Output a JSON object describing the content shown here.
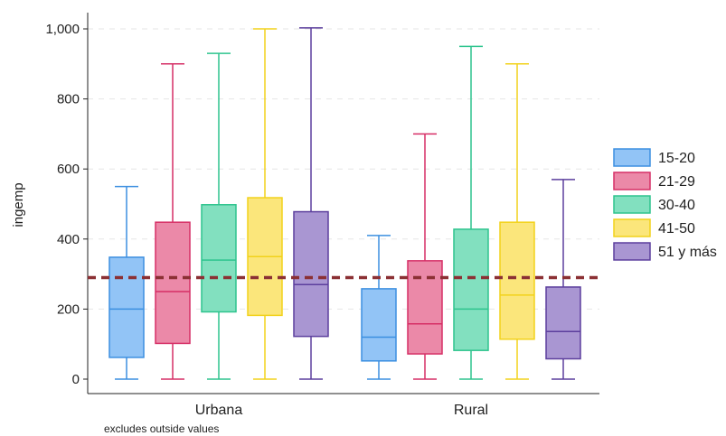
{
  "chart_data": {
    "type": "boxplot",
    "title": "",
    "xlabel": "",
    "ylabel": "ingemp",
    "ylim": [
      0,
      1000
    ],
    "yticks": [
      0,
      200,
      400,
      600,
      800,
      1000
    ],
    "ytick_labels": [
      "0",
      "200",
      "400",
      "600",
      "800",
      "1,000"
    ],
    "grid": true,
    "legend_position": "right",
    "note": "excludes outside values",
    "reference_line": {
      "value": 290,
      "style": "dashed",
      "color": "#8b3034"
    },
    "categories": [
      "Urbana",
      "Rural"
    ],
    "series": [
      {
        "name": "15-20",
        "stroke": "#3c8fe0",
        "fill": "#92c4f6",
        "boxes": [
          {
            "min": 0,
            "q1": 62,
            "median": 200,
            "q3": 348,
            "max": 550
          },
          {
            "min": 0,
            "q1": 52,
            "median": 120,
            "q3": 258,
            "max": 410
          }
        ]
      },
      {
        "name": "21-29",
        "stroke": "#d62f66",
        "fill": "#eb89a8",
        "boxes": [
          {
            "min": 0,
            "q1": 102,
            "median": 250,
            "q3": 448,
            "max": 900
          },
          {
            "min": 0,
            "q1": 72,
            "median": 158,
            "q3": 338,
            "max": 700
          }
        ]
      },
      {
        "name": "30-40",
        "stroke": "#2ec48e",
        "fill": "#82e0bf",
        "boxes": [
          {
            "min": 0,
            "q1": 192,
            "median": 340,
            "q3": 498,
            "max": 930
          },
          {
            "min": 0,
            "q1": 82,
            "median": 200,
            "q3": 428,
            "max": 950
          }
        ]
      },
      {
        "name": "41-50",
        "stroke": "#f2d21b",
        "fill": "#fbe67b",
        "boxes": [
          {
            "min": 0,
            "q1": 182,
            "median": 350,
            "q3": 518,
            "max": 1000
          },
          {
            "min": 0,
            "q1": 114,
            "median": 240,
            "q3": 448,
            "max": 900
          }
        ]
      },
      {
        "name": "51 y más",
        "stroke": "#5c3f9d",
        "fill": "#a996d2",
        "boxes": [
          {
            "min": 0,
            "q1": 122,
            "median": 270,
            "q3": 478,
            "max": 1003
          },
          {
            "min": 0,
            "q1": 58,
            "median": 136,
            "q3": 263,
            "max": 570
          }
        ]
      }
    ]
  }
}
